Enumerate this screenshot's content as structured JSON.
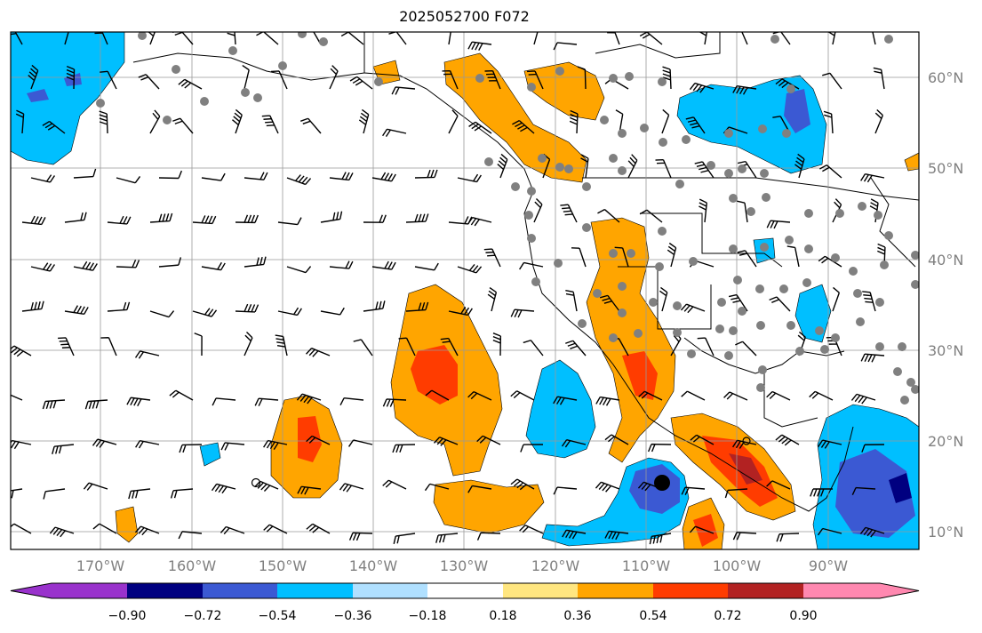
{
  "title": "2025052700 F072",
  "map": {
    "lon_labels": [
      "170°W",
      "160°W",
      "150°W",
      "140°W",
      "130°W",
      "120°W",
      "110°W",
      "100°W",
      "90°W"
    ],
    "lat_labels": [
      "60°N",
      "50°N",
      "40°N",
      "30°N",
      "20°N",
      "10°N"
    ]
  },
  "colorbar": {
    "colors": [
      "#9932cc",
      "#000080",
      "#3b59d3",
      "#00bfff",
      "#b0e0ff",
      "#ffffff",
      "#ffe680",
      "#ffa500",
      "#ff3c00",
      "#b22222",
      "#ff88b0"
    ],
    "tick_labels": [
      "−0.90",
      "−0.72",
      "−0.54",
      "−0.36",
      "−0.18",
      "0.18",
      "0.36",
      "0.54",
      "0.72",
      "0.90"
    ]
  }
}
